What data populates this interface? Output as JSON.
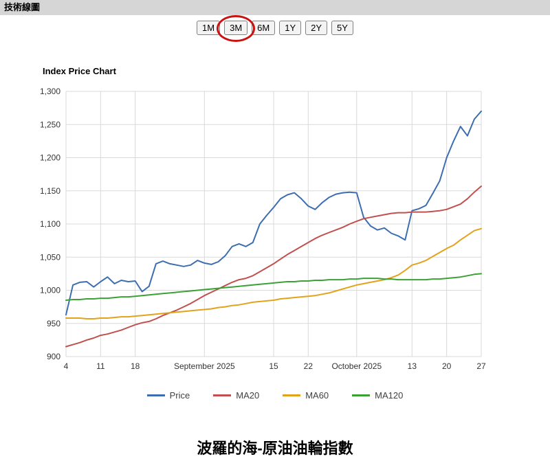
{
  "header": {
    "title": "技術線圖"
  },
  "toolbar": {
    "buttons": [
      {
        "label": "1M"
      },
      {
        "label": "3M",
        "annotated": true
      },
      {
        "label": "6M"
      },
      {
        "label": "1Y"
      },
      {
        "label": "2Y"
      },
      {
        "label": "5Y"
      }
    ]
  },
  "colors": {
    "topbar_bg": "#d6d6d6",
    "annotation": "#cc1111",
    "grid": "#d9d9d9",
    "axis_text": "#333333"
  },
  "footer": {
    "title": "波羅的海-原油油輪指數"
  },
  "chart_data": {
    "type": "line",
    "title": "Index Price Chart",
    "grid": true,
    "legend_position": "bottom",
    "ylim": [
      900,
      1300
    ],
    "y_tick_step": 50,
    "y_tick_labels": [
      "900",
      "950",
      "1,000",
      "1,050",
      "1,100",
      "1,150",
      "1,200",
      "1,250",
      "1,300"
    ],
    "x_ticks": [
      {
        "index": 0,
        "label": "4"
      },
      {
        "index": 5,
        "label": "11"
      },
      {
        "index": 10,
        "label": "18"
      },
      {
        "index": 20,
        "label": "September 2025"
      },
      {
        "index": 30,
        "label": "15"
      },
      {
        "index": 35,
        "label": "22"
      },
      {
        "index": 42,
        "label": "October 2025"
      },
      {
        "index": 50,
        "label": "13"
      },
      {
        "index": 55,
        "label": "20"
      },
      {
        "index": 60,
        "label": "27"
      }
    ],
    "series": [
      {
        "name": "Price",
        "color": "#3c6db0",
        "values": [
          963,
          1008,
          1012,
          1013,
          1005,
          1013,
          1020,
          1010,
          1015,
          1013,
          1014,
          998,
          1006,
          1040,
          1044,
          1040,
          1038,
          1036,
          1038,
          1045,
          1041,
          1039,
          1043,
          1052,
          1066,
          1070,
          1066,
          1072,
          1100,
          1113,
          1125,
          1138,
          1144,
          1147,
          1138,
          1127,
          1122,
          1132,
          1140,
          1145,
          1147,
          1148,
          1147,
          1110,
          1097,
          1091,
          1094,
          1086,
          1082,
          1076,
          1120,
          1123,
          1128,
          1146,
          1165,
          1200,
          1225,
          1247,
          1233,
          1258,
          1270
        ]
      },
      {
        "name": "MA20",
        "color": "#c0504d",
        "values": [
          915,
          918,
          921,
          925,
          928,
          932,
          934,
          937,
          940,
          944,
          948,
          951,
          953,
          957,
          962,
          966,
          970,
          975,
          980,
          986,
          992,
          997,
          1002,
          1007,
          1012,
          1016,
          1018,
          1022,
          1028,
          1034,
          1040,
          1047,
          1054,
          1060,
          1066,
          1072,
          1078,
          1083,
          1087,
          1091,
          1095,
          1100,
          1104,
          1108,
          1110,
          1112,
          1114,
          1116,
          1117,
          1117,
          1118,
          1118,
          1118,
          1119,
          1120,
          1122,
          1126,
          1130,
          1138,
          1148,
          1157
        ]
      },
      {
        "name": "MA60",
        "color": "#e3a21a",
        "values": [
          958,
          958,
          958,
          957,
          957,
          958,
          958,
          959,
          960,
          960,
          961,
          962,
          963,
          964,
          965,
          966,
          967,
          968,
          969,
          970,
          971,
          972,
          974,
          975,
          977,
          978,
          980,
          982,
          983,
          984,
          985,
          987,
          988,
          989,
          990,
          991,
          992,
          994,
          996,
          999,
          1002,
          1005,
          1008,
          1010,
          1012,
          1014,
          1016,
          1019,
          1023,
          1030,
          1038,
          1041,
          1045,
          1051,
          1057,
          1063,
          1068,
          1076,
          1083,
          1090,
          1093
        ]
      },
      {
        "name": "MA120",
        "color": "#3aa135",
        "values": [
          985,
          986,
          986,
          987,
          987,
          988,
          988,
          989,
          990,
          990,
          991,
          992,
          993,
          994,
          995,
          996,
          997,
          998,
          999,
          1000,
          1001,
          1002,
          1003,
          1004,
          1005,
          1006,
          1007,
          1008,
          1009,
          1010,
          1011,
          1012,
          1013,
          1013,
          1014,
          1014,
          1015,
          1015,
          1016,
          1016,
          1016,
          1017,
          1017,
          1018,
          1018,
          1018,
          1017,
          1017,
          1016,
          1016,
          1016,
          1016,
          1016,
          1017,
          1017,
          1018,
          1019,
          1020,
          1022,
          1024,
          1025
        ]
      }
    ]
  }
}
